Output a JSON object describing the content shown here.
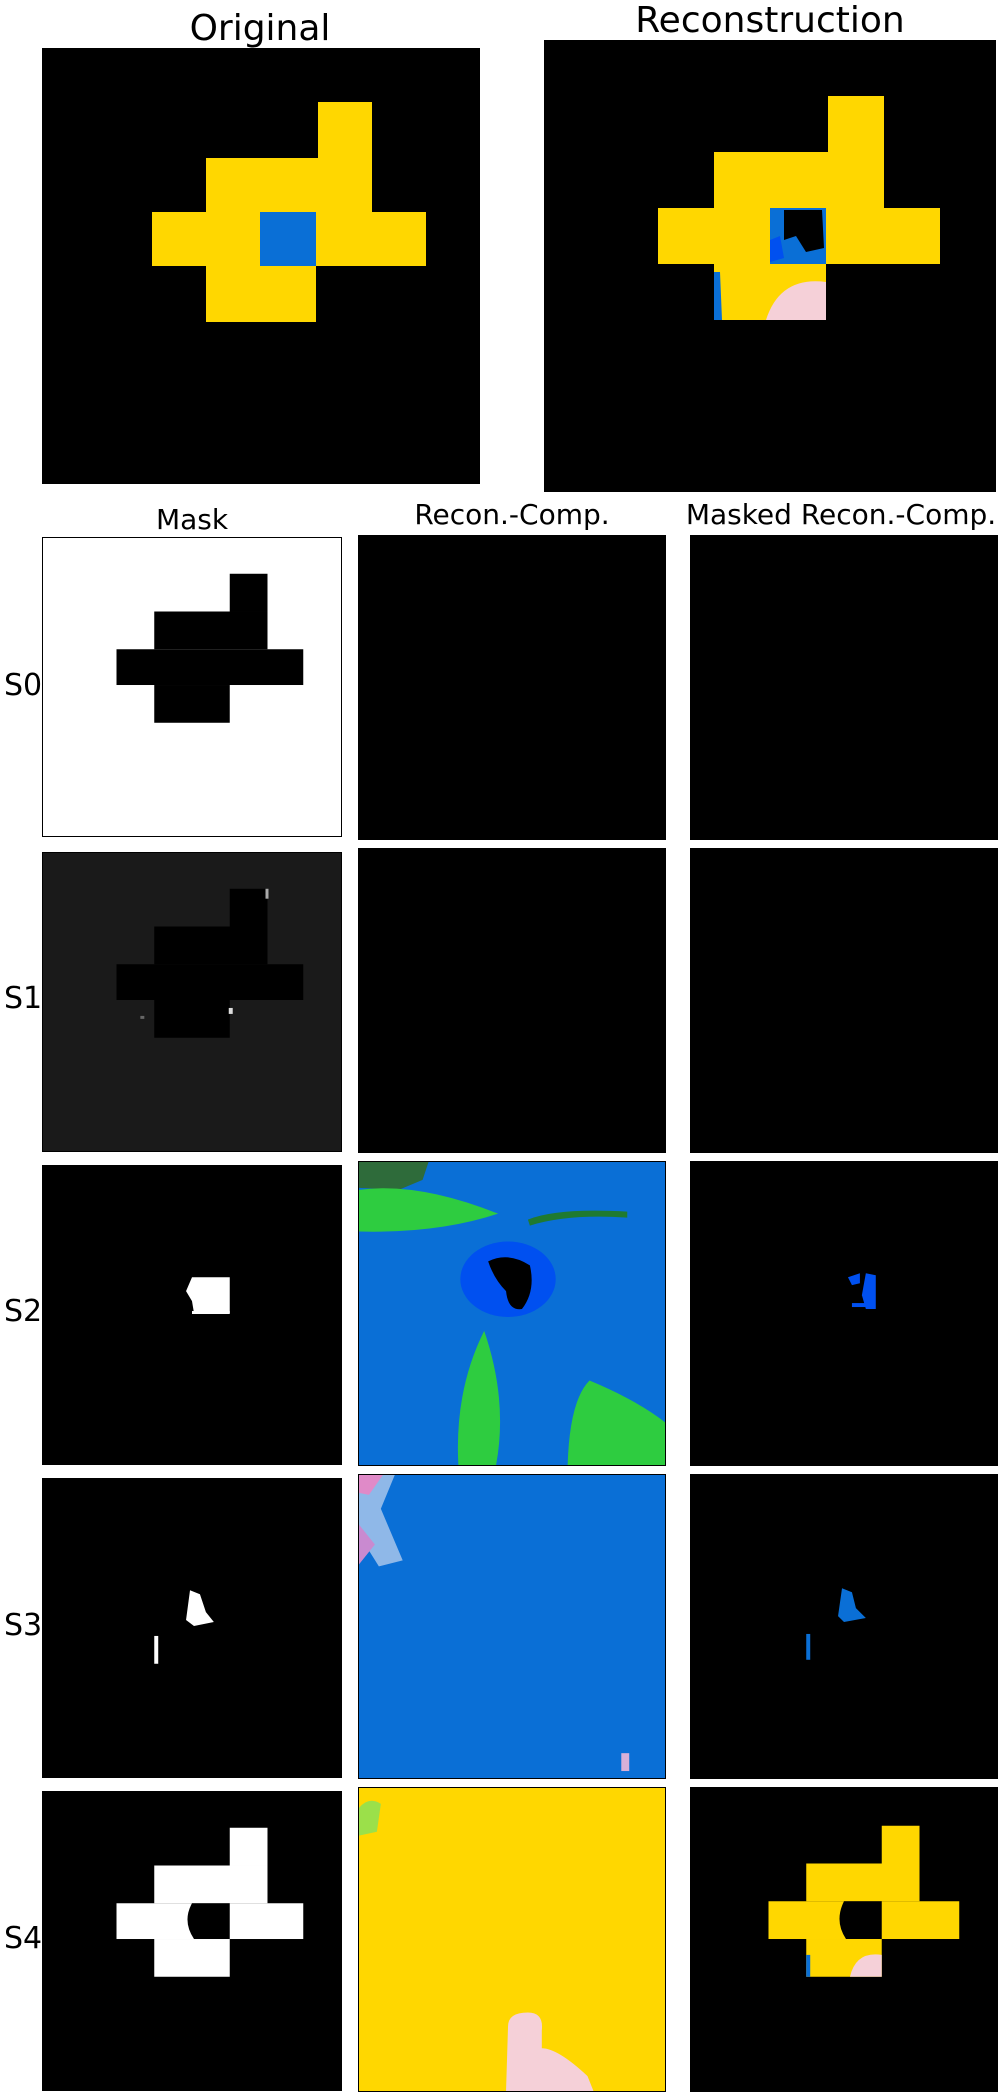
{
  "titles": {
    "original": "Original",
    "reconstruction": "Reconstruction"
  },
  "columns": {
    "mask": "Mask",
    "recon_comp": "Recon.-Comp.",
    "masked_recon_comp": "Masked Recon.-Comp."
  },
  "rows": [
    {
      "label": "S0"
    },
    {
      "label": "S1"
    },
    {
      "label": "S2"
    },
    {
      "label": "S3"
    },
    {
      "label": "S4"
    }
  ],
  "colors": {
    "background": "#000000",
    "yellow": "#FFD700",
    "blue": "#0A6FD6",
    "bright_blue": "#0050F0",
    "green": "#2ECC40",
    "pink": "#F5D0D8",
    "white": "#FFFFFF",
    "dark_gray": "#1A1A1A"
  }
}
